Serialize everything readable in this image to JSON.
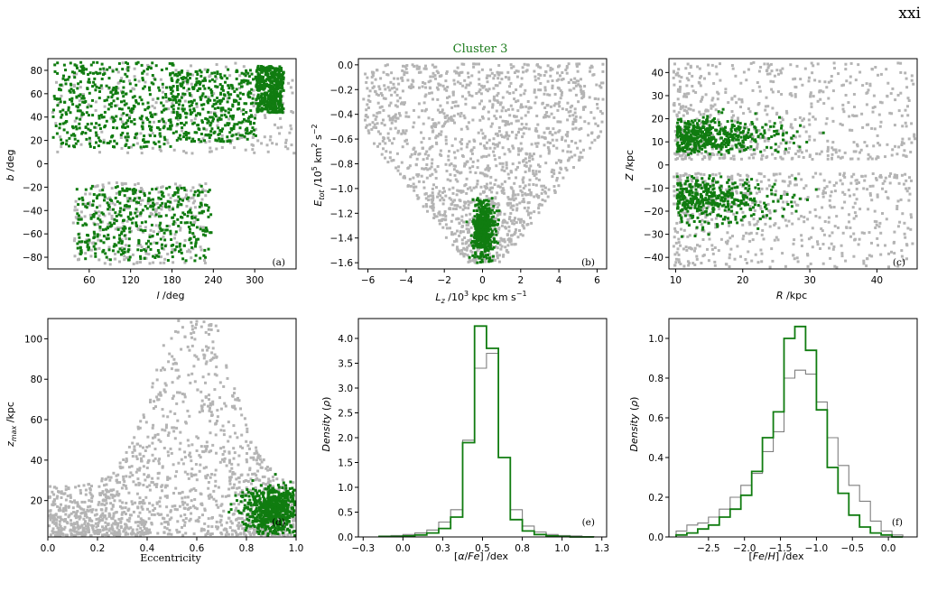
{
  "page_number": "xxi",
  "suptitle": "Cluster 3",
  "colors": {
    "background_points": "#b4b4b4",
    "cluster": "#107c10",
    "hist_all": "#7f7f7f"
  },
  "chart_data": [
    {
      "id": "a",
      "type": "scatter",
      "panel_label": "(a)",
      "xlabel": "l /deg",
      "ylabel": "b /deg",
      "xlim": [
        0,
        360
      ],
      "ylim": [
        -90,
        90
      ],
      "xticks": [
        60,
        120,
        180,
        240,
        300
      ],
      "yticks": [
        -80,
        -60,
        -40,
        -20,
        0,
        20,
        40,
        60,
        80
      ],
      "regions": [
        {
          "series": "all",
          "x": [
            [
              5,
              355
            ],
            [
              35,
              230
            ]
          ],
          "y": [
            [
              10,
              88
            ],
            [
              -85,
              -15
            ]
          ]
        },
        {
          "series": "cluster",
          "x": [
            [
              5,
              180
            ],
            [
              175,
              300
            ],
            [
              300,
              340
            ],
            [
              40,
              235
            ]
          ],
          "y": [
            [
              15,
              88
            ],
            [
              20,
              82
            ],
            [
              45,
              85
            ],
            [
              -82,
              -18
            ]
          ]
        }
      ]
    },
    {
      "id": "b",
      "type": "scatter",
      "panel_label": "(b)",
      "xlabel": "L_z /10^3 kpc km s^-1",
      "ylabel": "E_tot /10^5 km^2 s^-2",
      "xlim": [
        -6.5,
        6.5
      ],
      "ylim": [
        -1.65,
        0.05
      ],
      "xticks": [
        -6,
        -4,
        -2,
        0,
        2,
        4,
        6
      ],
      "yticks": [
        -1.6,
        -1.4,
        -1.2,
        -1.0,
        -0.8,
        -0.6,
        -0.4,
        -0.2,
        0.0
      ],
      "cluster_center": {
        "x": 0.0,
        "y": -1.32
      }
    },
    {
      "id": "c",
      "type": "scatter",
      "panel_label": "(c)",
      "xlabel": "R /kpc",
      "ylabel": "Z /kpc",
      "xlim": [
        9,
        46
      ],
      "ylim": [
        -45,
        46
      ],
      "xticks": [
        10,
        20,
        30,
        40
      ],
      "yticks": [
        -40,
        -30,
        -20,
        -10,
        0,
        10,
        20,
        30,
        40
      ],
      "regions": [
        {
          "series": "all",
          "x": [
            [
              9.5,
              45.5
            ]
          ],
          "y": [
            [
              3,
              45
            ],
            [
              -45,
              -3
            ]
          ]
        },
        {
          "series": "cluster",
          "x": [
            [
              10,
              31
            ]
          ],
          "y": [
            [
              6,
              22
            ],
            [
              -28,
              -5
            ]
          ]
        }
      ]
    },
    {
      "id": "d",
      "type": "scatter",
      "panel_label": "(d)",
      "xlabel": "Eccentricity",
      "ylabel": "z_max /kpc",
      "xlim": [
        0.0,
        1.0
      ],
      "ylim": [
        2,
        110
      ],
      "xticks": [
        0.0,
        0.2,
        0.4,
        0.6,
        0.8,
        1.0
      ],
      "yticks": [
        20,
        40,
        60,
        80,
        100
      ],
      "cluster_center": {
        "x": 0.9,
        "y": 16
      }
    },
    {
      "id": "e",
      "type": "step",
      "panel_label": "(e)",
      "xlabel": "[α/Fe] /dex",
      "ylabel": "Density (ρ)",
      "xlim": [
        -0.28,
        1.28
      ],
      "ylim": [
        0,
        4.4
      ],
      "xticks": [
        -0.25,
        0.0,
        0.25,
        0.5,
        0.75,
        1.0,
        1.25
      ],
      "yticks": [
        0.0,
        0.5,
        1.0,
        1.5,
        2.0,
        2.5,
        3.0,
        3.5,
        4.0
      ],
      "bin_edges": [
        -0.15,
        -0.075,
        0.0,
        0.075,
        0.15,
        0.225,
        0.3,
        0.375,
        0.45,
        0.525,
        0.6,
        0.675,
        0.75,
        0.825,
        0.9,
        0.975,
        1.05,
        1.125,
        1.2
      ],
      "series": [
        {
          "color": "#7f7f7f",
          "values": [
            0.02,
            0.03,
            0.05,
            0.08,
            0.14,
            0.3,
            0.55,
            1.95,
            3.4,
            3.7,
            1.6,
            0.55,
            0.22,
            0.1,
            0.05,
            0.03,
            0.02,
            0.01
          ]
        },
        {
          "color": "#107c10",
          "values": [
            0.01,
            0.01,
            0.02,
            0.04,
            0.08,
            0.17,
            0.4,
            1.9,
            4.25,
            3.8,
            1.6,
            0.35,
            0.12,
            0.05,
            0.02,
            0.01,
            0.0,
            0.0
          ]
        }
      ]
    },
    {
      "id": "f",
      "type": "step",
      "panel_label": "(f)",
      "xlabel": "[Fe/H] /dex",
      "ylabel": "Density (ρ)",
      "xlim": [
        -3.05,
        0.4
      ],
      "ylim": [
        0,
        1.1
      ],
      "xticks": [
        -2.5,
        -2.0,
        -1.5,
        -1.0,
        -0.5,
        0.0
      ],
      "yticks": [
        0.0,
        0.2,
        0.4,
        0.6,
        0.8,
        1.0
      ],
      "bin_edges": [
        -2.95,
        -2.8,
        -2.65,
        -2.5,
        -2.35,
        -2.2,
        -2.05,
        -1.9,
        -1.75,
        -1.6,
        -1.45,
        -1.3,
        -1.15,
        -1.0,
        -0.85,
        -0.7,
        -0.55,
        -0.4,
        -0.25,
        -0.1,
        0.05,
        0.2
      ],
      "series": [
        {
          "color": "#7f7f7f",
          "values": [
            0.03,
            0.06,
            0.07,
            0.1,
            0.14,
            0.2,
            0.26,
            0.32,
            0.43,
            0.53,
            0.8,
            0.84,
            0.82,
            0.68,
            0.5,
            0.36,
            0.26,
            0.18,
            0.08,
            0.03,
            0.01
          ]
        },
        {
          "color": "#107c10",
          "values": [
            0.01,
            0.02,
            0.04,
            0.06,
            0.1,
            0.14,
            0.21,
            0.33,
            0.5,
            0.63,
            1.0,
            1.06,
            0.94,
            0.64,
            0.35,
            0.22,
            0.11,
            0.05,
            0.02,
            0.01,
            0.0
          ]
        }
      ]
    }
  ]
}
